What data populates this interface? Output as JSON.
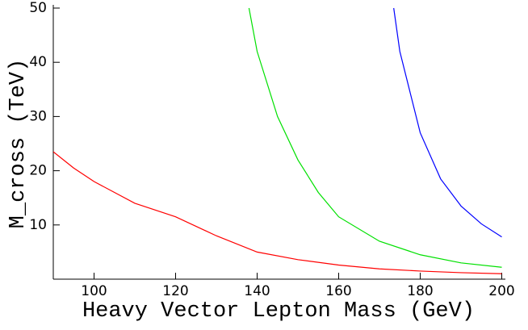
{
  "chart_data": {
    "type": "line",
    "x_label": "Heavy Vector Lepton Mass (GeV)",
    "y_label": "M_cross (TeV)",
    "xlim": [
      90,
      200
    ],
    "ylim": [
      0,
      50
    ],
    "xticks": [
      100,
      120,
      140,
      160,
      180,
      200
    ],
    "yticks": [
      10,
      20,
      30,
      40,
      50
    ],
    "series": [
      {
        "color": "#ff0000",
        "x": [
          90,
          95,
          100,
          110,
          120,
          130,
          140,
          150,
          160,
          170,
          180,
          190,
          200
        ],
        "values": [
          23.5,
          20.5,
          18,
          14,
          11.5,
          8,
          5,
          3.6,
          2.6,
          1.9,
          1.5,
          1.2,
          1.0
        ]
      },
      {
        "color": "#00e000",
        "x": [
          138,
          140,
          145,
          150,
          155,
          160,
          170,
          180,
          190,
          200
        ],
        "values": [
          50,
          42,
          30,
          22,
          16,
          11.5,
          7,
          4.5,
          3,
          2.2
        ]
      },
      {
        "color": "#0000ff",
        "x": [
          173.5,
          175,
          180,
          185,
          190,
          195,
          200
        ],
        "values": [
          50,
          42,
          27,
          18.5,
          13.5,
          10.2,
          7.8
        ]
      }
    ]
  }
}
